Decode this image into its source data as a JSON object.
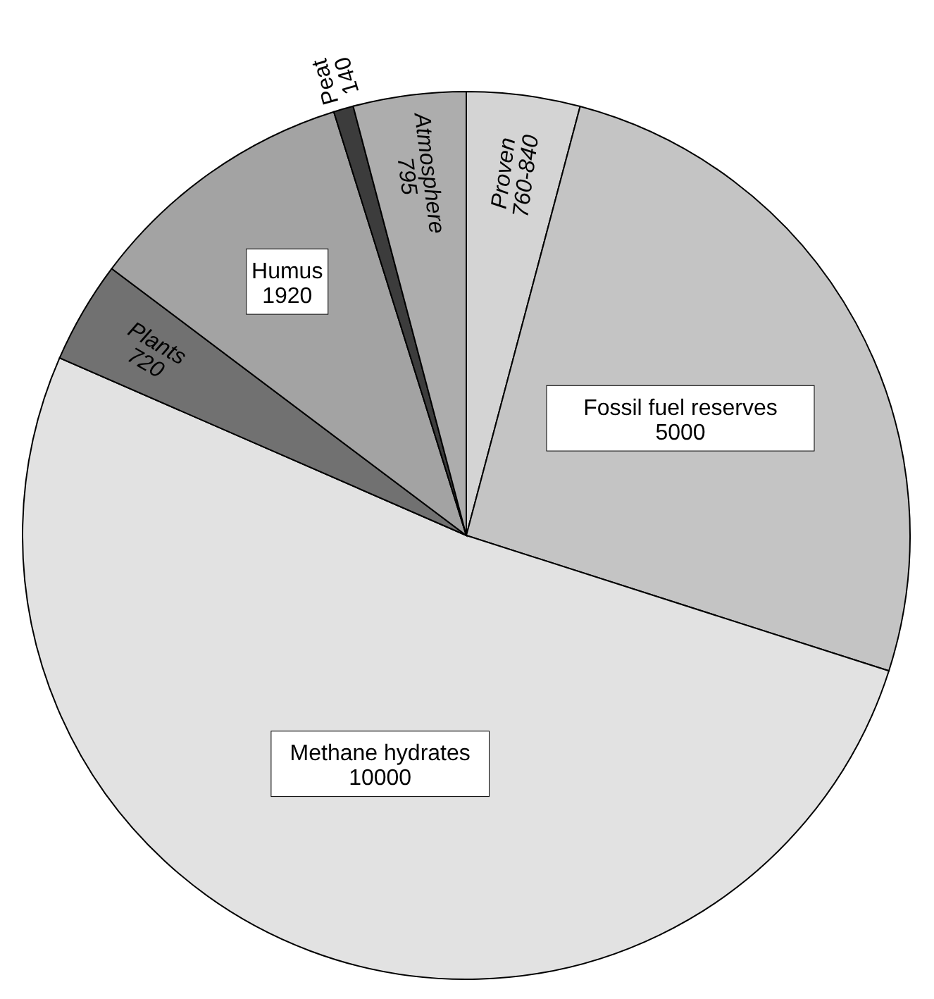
{
  "chart_data": {
    "type": "pie",
    "categories": [
      "Proven",
      "Fossil fuel reserves",
      "Methane hydrates",
      "Plants",
      "Humus",
      "Peat",
      "Atmosphere"
    ],
    "values": [
      800,
      5000,
      10000,
      720,
      1920,
      140,
      795
    ],
    "value_labels": [
      "760-840",
      "5000",
      "10000",
      "720",
      "1920",
      "140",
      "795"
    ],
    "colors": [
      "#d4d4d4",
      "#c4c4c4",
      "#e2e2e2",
      "#717171",
      "#a3a3a3",
      "#3c3c3c",
      "#adadad"
    ]
  }
}
